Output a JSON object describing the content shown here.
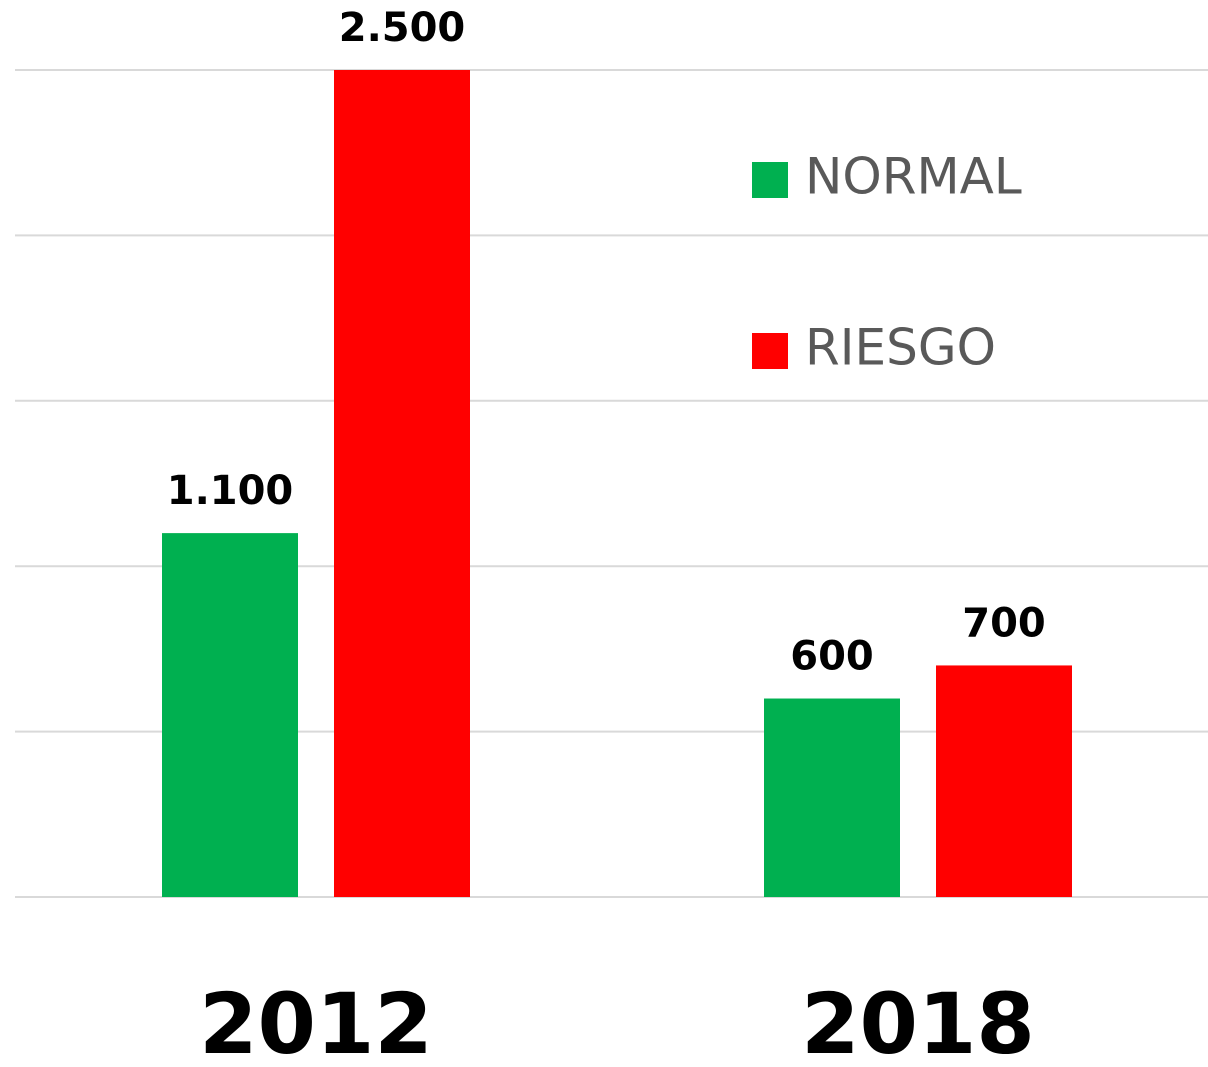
{
  "chart_data": {
    "type": "bar",
    "categories": [
      "2012",
      "2018"
    ],
    "series": [
      {
        "name": "NORMAL",
        "color": "#00b050",
        "values": [
          1100,
          600
        ],
        "value_labels": [
          "1.100",
          "600"
        ]
      },
      {
        "name": "RIESGO",
        "color": "#ff0000",
        "values": [
          2500,
          700
        ],
        "value_labels": [
          "2.500",
          "700"
        ]
      }
    ],
    "ylim": [
      0,
      2500
    ],
    "yticks": [
      0,
      500,
      1000,
      1500,
      2000,
      2500
    ],
    "grid": true,
    "legend": "upper right"
  }
}
